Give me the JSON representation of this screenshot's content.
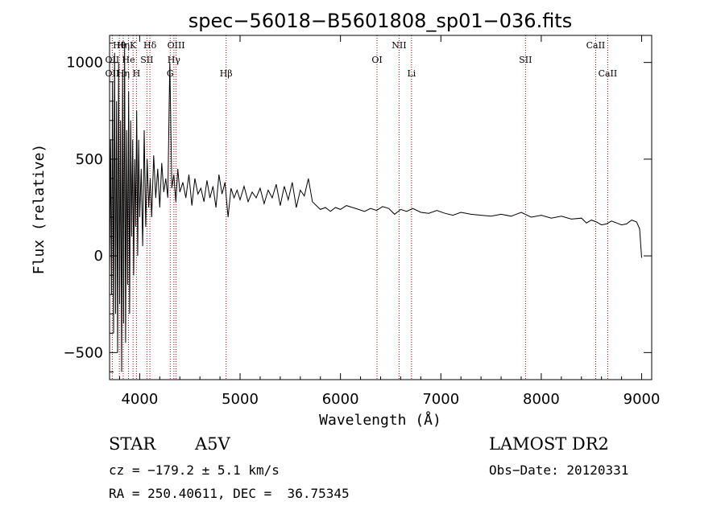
{
  "chart_data": {
    "type": "line",
    "title": "spec−56018−B5601808_sp01−036.fits",
    "xlabel": "Wavelength (Å)",
    "ylabel": "Flux (relative)",
    "xlim": [
      3700,
      9100
    ],
    "ylim": [
      -640,
      1140
    ],
    "xticks": [
      4000,
      5000,
      6000,
      7000,
      8000,
      9000
    ],
    "yticks": [
      -500,
      0,
      500,
      1000
    ],
    "series": [
      {
        "name": "spectrum",
        "color": "#000000",
        "x": [
          3700,
          3710,
          3720,
          3730,
          3740,
          3750,
          3760,
          3770,
          3780,
          3790,
          3800,
          3810,
          3820,
          3830,
          3840,
          3850,
          3860,
          3870,
          3880,
          3890,
          3900,
          3910,
          3920,
          3930,
          3940,
          3950,
          3960,
          3970,
          3980,
          3990,
          4000,
          4015,
          4030,
          4045,
          4060,
          4075,
          4090,
          4105,
          4120,
          4140,
          4160,
          4180,
          4200,
          4220,
          4240,
          4260,
          4280,
          4300,
          4320,
          4340,
          4360,
          4380,
          4400,
          4430,
          4460,
          4490,
          4520,
          4550,
          4580,
          4610,
          4640,
          4670,
          4700,
          4730,
          4760,
          4790,
          4820,
          4850,
          4880,
          4910,
          4940,
          4970,
          5000,
          5040,
          5080,
          5120,
          5160,
          5200,
          5240,
          5280,
          5320,
          5360,
          5400,
          5440,
          5480,
          5520,
          5560,
          5600,
          5640,
          5680,
          5720,
          5760,
          5800,
          5850,
          5900,
          5950,
          6000,
          6060,
          6120,
          6180,
          6240,
          6300,
          6360,
          6420,
          6480,
          6540,
          6600,
          6660,
          6720,
          6800,
          6880,
          6960,
          7040,
          7120,
          7200,
          7300,
          7400,
          7500,
          7600,
          7700,
          7800,
          7900,
          8000,
          8100,
          8200,
          8300,
          8400,
          8450,
          8500,
          8550,
          8600,
          8650,
          8700,
          8750,
          8800,
          8850,
          8900,
          8950,
          8980,
          9000
        ],
        "y": [
          -100,
          600,
          -200,
          900,
          -400,
          1050,
          -300,
          800,
          -500,
          1000,
          -250,
          700,
          -600,
          950,
          -350,
          1100,
          -450,
          650,
          -150,
          850,
          -300,
          700,
          100,
          600,
          -100,
          500,
          150,
          750,
          0,
          600,
          200,
          450,
          50,
          650,
          150,
          500,
          250,
          400,
          200,
          520,
          300,
          450,
          250,
          480,
          330,
          400,
          300,
          1000,
          350,
          420,
          280,
          450,
          330,
          380,
          300,
          420,
          260,
          400,
          320,
          350,
          280,
          390,
          300,
          360,
          250,
          420,
          320,
          380,
          200,
          350,
          300,
          340,
          290,
          360,
          280,
          330,
          300,
          350,
          270,
          340,
          300,
          370,
          260,
          360,
          290,
          380,
          250,
          340,
          310,
          400,
          280,
          260,
          240,
          250,
          230,
          250,
          240,
          260,
          250,
          240,
          230,
          245,
          235,
          255,
          245,
          215,
          240,
          230,
          245,
          225,
          220,
          235,
          220,
          210,
          225,
          215,
          210,
          205,
          215,
          205,
          225,
          200,
          210,
          195,
          205,
          190,
          195,
          170,
          185,
          175,
          160,
          165,
          180,
          170,
          160,
          165,
          185,
          175,
          140,
          -10
        ]
      }
    ],
    "line_labels": [
      {
        "name": "Hθ",
        "x": 3798,
        "row": 1
      },
      {
        "name": "Hη",
        "x": 3836,
        "row": 1
      },
      {
        "name": "K",
        "x": 3934,
        "row": 1
      },
      {
        "name": "Hδ",
        "x": 4102,
        "row": 1
      },
      {
        "name": "OIII",
        "x": 4363,
        "row": 1
      },
      {
        "name": "NII",
        "x": 6584,
        "row": 1
      },
      {
        "name": "CaII",
        "x": 8542,
        "row": 1
      },
      {
        "name": "OII",
        "x": 3727,
        "row": 2
      },
      {
        "name": "He",
        "x": 3889,
        "row": 2
      },
      {
        "name": "SII",
        "x": 4072,
        "row": 2
      },
      {
        "name": "Hγ",
        "x": 4341,
        "row": 2
      },
      {
        "name": "OI",
        "x": 6364,
        "row": 2
      },
      {
        "name": "SII",
        "x": 7843,
        "row": 2
      },
      {
        "name": "OII",
        "x": 3727,
        "row": 3
      },
      {
        "name": "Hη",
        "x": 3836,
        "row": 3
      },
      {
        "name": "H",
        "x": 3968,
        "row": 3
      },
      {
        "name": "G",
        "x": 4304,
        "row": 3
      },
      {
        "name": "Hβ",
        "x": 4861,
        "row": 3
      },
      {
        "name": "Li",
        "x": 6708,
        "row": 3
      },
      {
        "name": "CaII",
        "x": 8662,
        "row": 3
      }
    ]
  },
  "info": {
    "object_class": "STAR",
    "subclass": "A5V",
    "survey": "LAMOST DR2",
    "cz": "cz = −179.2 ± 5.1 km/s",
    "obs_date": "Obs−Date: 20120331",
    "coords": "RA = 250.40611, DEC =  36.75345"
  }
}
